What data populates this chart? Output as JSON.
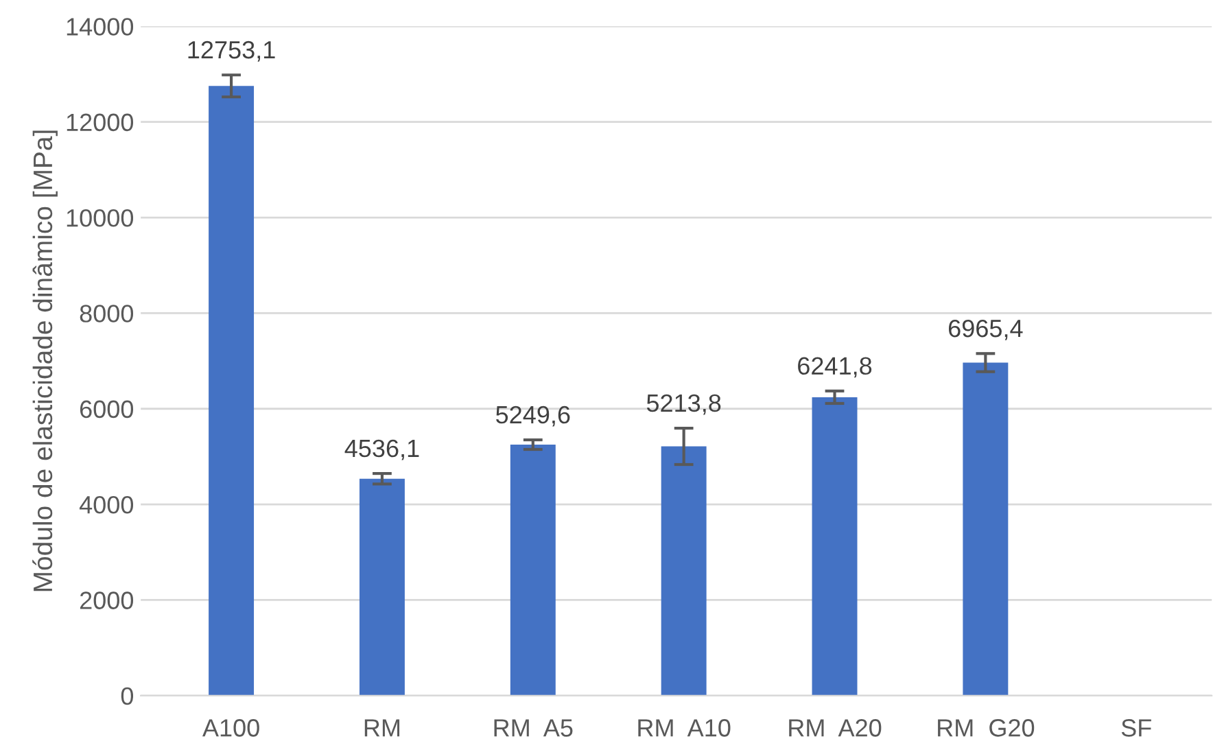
{
  "chart_data": {
    "type": "bar",
    "ylabel": "Módulo de elasticidade dinâmico [MPa]",
    "categories": [
      "A100",
      "RM",
      "RM  A5",
      "RM  A10",
      "RM  A20",
      "RM  G20",
      "SF"
    ],
    "values": [
      12753.1,
      4536.1,
      5249.6,
      5213.8,
      6241.8,
      6965.4,
      null
    ],
    "errors": [
      230,
      110,
      100,
      380,
      130,
      190,
      null
    ],
    "value_labels": [
      "12753,1",
      "4536,1",
      "5249,6",
      "5213,8",
      "6241,8",
      "6965,4",
      null
    ],
    "color": "#4472c4",
    "ylim": [
      0,
      14000
    ],
    "yticks": [
      0,
      2000,
      4000,
      6000,
      8000,
      10000,
      12000,
      14000
    ],
    "grid": "y"
  }
}
